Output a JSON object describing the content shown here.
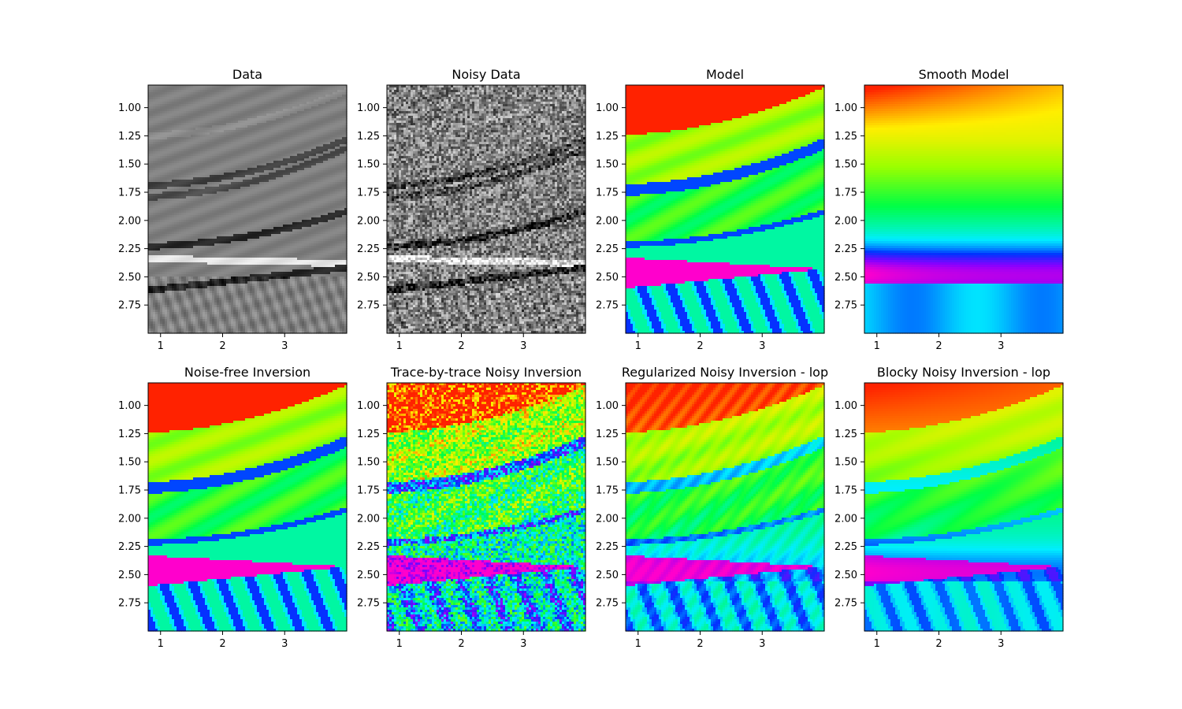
{
  "figure": {
    "colormaps": {
      "gray": [
        "#000000",
        "#ffffff"
      ],
      "hsv_like": [
        "#ff00cc",
        "#8800ff",
        "#0033ff",
        "#00eeff",
        "#00ff44",
        "#99ff00",
        "#ffee00",
        "#ff2200"
      ]
    }
  },
  "chart_data": [
    {
      "type": "heatmap",
      "title": "Data",
      "colormap": "gray",
      "xlim": [
        0.8,
        4.0
      ],
      "ylim": [
        3.0,
        0.8
      ],
      "invert_y": true,
      "x_ticks": [
        "1",
        "2",
        "3"
      ],
      "y_ticks": [
        "1.00",
        "1.25",
        "1.50",
        "1.75",
        "2.00",
        "2.25",
        "2.50",
        "2.75"
      ],
      "style": "seismic",
      "events": [
        {
          "type": "curve",
          "y_left": 1.25,
          "y_right": 0.85,
          "value": 0.55
        },
        {
          "type": "curve",
          "y_left": 1.69,
          "y_right": 1.28,
          "value": 0.25
        },
        {
          "type": "curve",
          "y_left": 1.79,
          "y_right": 1.36,
          "value": 0.3
        },
        {
          "type": "curve",
          "y_left": 2.23,
          "y_right": 1.92,
          "value": 0.15
        },
        {
          "type": "flat",
          "y": 2.34,
          "value": 0.9
        },
        {
          "type": "dip",
          "y_left": 2.62,
          "y_right": 2.42,
          "value": 0.15
        }
      ]
    },
    {
      "type": "heatmap",
      "title": "Noisy Data",
      "colormap": "gray",
      "xlim": [
        0.8,
        4.0
      ],
      "ylim": [
        3.0,
        0.8
      ],
      "invert_y": true,
      "x_ticks": [
        "1",
        "2",
        "3"
      ],
      "y_ticks": [
        "1.00",
        "1.25",
        "1.50",
        "1.75",
        "2.00",
        "2.25",
        "2.50",
        "2.75"
      ],
      "style": "seismic_noisy",
      "events": [
        {
          "type": "curve",
          "y_left": 1.69,
          "y_right": 1.28,
          "value": 0.25
        },
        {
          "type": "curve",
          "y_left": 1.79,
          "y_right": 1.36,
          "value": 0.3
        },
        {
          "type": "curve",
          "y_left": 2.23,
          "y_right": 1.92,
          "value": 0.15
        },
        {
          "type": "flat",
          "y": 2.34,
          "value": 0.9
        },
        {
          "type": "dip",
          "y_left": 2.62,
          "y_right": 2.42,
          "value": 0.15
        }
      ]
    },
    {
      "type": "heatmap",
      "title": "Model",
      "colormap": "hsv_like",
      "xlim": [
        0.8,
        4.0
      ],
      "ylim": [
        3.0,
        0.8
      ],
      "invert_y": true,
      "x_ticks": [
        "1",
        "2",
        "3"
      ],
      "y_ticks": [
        "1.00",
        "1.25",
        "1.50",
        "1.75",
        "2.00",
        "2.25",
        "2.50",
        "2.75"
      ],
      "style": "model",
      "layers": [
        {
          "top_left": 0.8,
          "top_right": 0.8,
          "value": 1.0
        },
        {
          "top_left": 1.24,
          "top_right": 0.82,
          "value": 0.72
        },
        {
          "top_left": 1.68,
          "top_right": 1.27,
          "value": 0.3
        },
        {
          "top_left": 1.78,
          "top_right": 1.37,
          "value": 0.6
        },
        {
          "top_left": 2.19,
          "top_right": 1.9,
          "value": 0.3
        },
        {
          "top_left": 2.24,
          "top_right": 1.95,
          "value": 0.5
        },
        {
          "top_left": 2.33,
          "top_right": 2.43,
          "value": 0.0
        },
        {
          "top_left": 2.6,
          "top_right": 2.43,
          "value": 0.42
        }
      ]
    },
    {
      "type": "heatmap",
      "title": "Smooth Model",
      "colormap": "hsv_like",
      "xlim": [
        0.8,
        4.0
      ],
      "ylim": [
        3.0,
        0.8
      ],
      "invert_y": true,
      "x_ticks": [
        "1",
        "2",
        "3"
      ],
      "y_ticks": [
        "1.00",
        "1.25",
        "1.50",
        "1.75",
        "2.00",
        "2.25",
        "2.50",
        "2.75"
      ],
      "style": "smooth"
    },
    {
      "type": "heatmap",
      "title": "Noise-free Inversion",
      "colormap": "hsv_like",
      "xlim": [
        0.8,
        4.0
      ],
      "ylim": [
        3.0,
        0.8
      ],
      "invert_y": true,
      "x_ticks": [
        "1",
        "2",
        "3"
      ],
      "y_ticks": [
        "1.00",
        "1.25",
        "1.50",
        "1.75",
        "2.00",
        "2.25",
        "2.50",
        "2.75"
      ],
      "style": "model"
    },
    {
      "type": "heatmap",
      "title": "Trace-by-trace Noisy Inversion",
      "colormap": "hsv_like",
      "xlim": [
        0.8,
        4.0
      ],
      "ylim": [
        3.0,
        0.8
      ],
      "invert_y": true,
      "x_ticks": [
        "1",
        "2",
        "3"
      ],
      "y_ticks": [
        "1.00",
        "1.25",
        "1.50",
        "1.75",
        "2.00",
        "2.25",
        "2.50",
        "2.75"
      ],
      "style": "model_noisy"
    },
    {
      "type": "heatmap",
      "title": "Regularized Noisy Inversion - lop",
      "colormap": "hsv_like",
      "xlim": [
        0.8,
        4.0
      ],
      "ylim": [
        3.0,
        0.8
      ],
      "invert_y": true,
      "x_ticks": [
        "1",
        "2",
        "3"
      ],
      "y_ticks": [
        "1.00",
        "1.25",
        "1.50",
        "1.75",
        "2.00",
        "2.25",
        "2.50",
        "2.75"
      ],
      "style": "model_reg"
    },
    {
      "type": "heatmap",
      "title": "Blocky Noisy Inversion - lop",
      "colormap": "hsv_like",
      "xlim": [
        0.8,
        4.0
      ],
      "ylim": [
        3.0,
        0.8
      ],
      "invert_y": true,
      "x_ticks": [
        "1",
        "2",
        "3"
      ],
      "y_ticks": [
        "1.00",
        "1.25",
        "1.50",
        "1.75",
        "2.00",
        "2.25",
        "2.50",
        "2.75"
      ],
      "style": "model_blocky"
    }
  ]
}
